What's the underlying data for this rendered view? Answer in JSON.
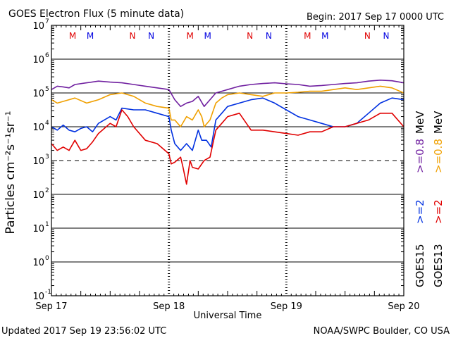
{
  "chart_data": {
    "type": "line",
    "title": "GOES Electron Flux (5 minute data)",
    "begin_label": "Begin: 2017 Sep 17 0000 UTC",
    "xlabel": "Universal Time",
    "ylabel": "Particles cm⁻²s⁻¹sr⁻¹",
    "x_ticks": [
      "Sep 17",
      "Sep 18",
      "Sep 19",
      "Sep 20"
    ],
    "x_range_days": [
      0,
      3
    ],
    "y_scale": "log",
    "ylim_exponents": [
      -1,
      7
    ],
    "y_tick_exponents": [
      7,
      6,
      5,
      4,
      3,
      2,
      1,
      0,
      -1
    ],
    "threshold_exponent": 3,
    "footer_left": "Updated 2017 Sep 19 23:56:02 UTC",
    "footer_right": "NOAA/SWPC Boulder, CO USA",
    "noon_midnight_markers": [
      {
        "label": "M",
        "day": 0.18,
        "color": "#e00000"
      },
      {
        "label": "M",
        "day": 0.33,
        "color": "#0000e0"
      },
      {
        "label": "N",
        "day": 0.69,
        "color": "#e00000"
      },
      {
        "label": "N",
        "day": 0.85,
        "color": "#0000e0"
      },
      {
        "label": "M",
        "day": 1.18,
        "color": "#e00000"
      },
      {
        "label": "M",
        "day": 1.33,
        "color": "#0000e0"
      },
      {
        "label": "N",
        "day": 1.69,
        "color": "#e00000"
      },
      {
        "label": "N",
        "day": 1.85,
        "color": "#0000e0"
      },
      {
        "label": "M",
        "day": 2.18,
        "color": "#e00000"
      },
      {
        "label": "M",
        "day": 2.33,
        "color": "#0000e0"
      },
      {
        "label": "N",
        "day": 2.69,
        "color": "#e00000"
      },
      {
        "label": "N",
        "day": 2.85,
        "color": "#0000e0"
      }
    ],
    "legend": {
      "goes15_label": "GOES15",
      "goes13_label": "GOES13",
      "goes15_ge2": ">=2",
      "goes13_ge2": ">=2",
      "goes15_ge08": ">=0.8",
      "goes13_ge08": ">=0.8",
      "unit": "MeV"
    },
    "series": [
      {
        "name": "GOES15 >=0.8 MeV",
        "color": "#7020a0",
        "x": [
          0,
          0.05,
          0.1,
          0.15,
          0.2,
          0.3,
          0.4,
          0.5,
          0.6,
          0.7,
          0.8,
          0.9,
          1.0,
          1.05,
          1.1,
          1.15,
          1.2,
          1.25,
          1.3,
          1.35,
          1.4,
          1.5,
          1.6,
          1.7,
          1.8,
          1.9,
          2.0,
          2.1,
          2.2,
          2.3,
          2.4,
          2.5,
          2.6,
          2.7,
          2.8,
          2.9,
          3.0
        ],
        "y": [
          5.1,
          5.2,
          5.18,
          5.15,
          5.25,
          5.3,
          5.35,
          5.32,
          5.3,
          5.25,
          5.2,
          5.15,
          5.1,
          4.8,
          4.6,
          4.7,
          4.75,
          4.9,
          4.6,
          4.8,
          5.0,
          5.1,
          5.2,
          5.25,
          5.28,
          5.3,
          5.27,
          5.25,
          5.2,
          5.22,
          5.25,
          5.28,
          5.3,
          5.35,
          5.38,
          5.36,
          5.3
        ]
      },
      {
        "name": "GOES13 >=0.8 MeV",
        "color": "#f0a000",
        "x": [
          0,
          0.05,
          0.1,
          0.2,
          0.3,
          0.4,
          0.5,
          0.6,
          0.7,
          0.8,
          0.9,
          1.0,
          1.02,
          1.05,
          1.1,
          1.15,
          1.2,
          1.25,
          1.28,
          1.3,
          1.35,
          1.4,
          1.45,
          1.5,
          1.6,
          1.7,
          1.8,
          1.9,
          2.0,
          2.1,
          2.2,
          2.3,
          2.4,
          2.5,
          2.6,
          2.7,
          2.8,
          2.9,
          3.0
        ],
        "y": [
          4.8,
          4.7,
          4.75,
          4.85,
          4.7,
          4.8,
          4.95,
          5.0,
          4.9,
          4.7,
          4.6,
          4.55,
          4.2,
          4.2,
          4.0,
          4.3,
          4.2,
          4.5,
          4.3,
          4.0,
          4.2,
          4.7,
          4.85,
          4.95,
          5.0,
          4.95,
          4.9,
          5.0,
          5.0,
          5.02,
          5.05,
          5.05,
          5.1,
          5.15,
          5.1,
          5.15,
          5.2,
          5.15,
          5.0
        ]
      },
      {
        "name": "GOES15 >=2 MeV",
        "color": "#0030e0",
        "x": [
          0,
          0.05,
          0.1,
          0.15,
          0.2,
          0.25,
          0.3,
          0.35,
          0.4,
          0.5,
          0.55,
          0.6,
          0.7,
          0.8,
          0.9,
          1.0,
          1.02,
          1.05,
          1.1,
          1.15,
          1.2,
          1.25,
          1.28,
          1.32,
          1.36,
          1.4,
          1.45,
          1.5,
          1.6,
          1.7,
          1.8,
          1.9,
          2.0,
          2.1,
          2.2,
          2.3,
          2.4,
          2.5,
          2.6,
          2.7,
          2.8,
          2.9,
          3.0
        ],
        "y": [
          4.0,
          3.9,
          4.05,
          3.9,
          3.85,
          3.95,
          4.0,
          3.85,
          4.1,
          4.3,
          4.2,
          4.55,
          4.5,
          4.5,
          4.4,
          4.3,
          3.9,
          3.5,
          3.3,
          3.5,
          3.3,
          3.9,
          3.6,
          3.6,
          3.4,
          4.2,
          4.4,
          4.6,
          4.7,
          4.8,
          4.85,
          4.7,
          4.5,
          4.3,
          4.2,
          4.1,
          4.0,
          4.0,
          4.1,
          4.4,
          4.7,
          4.85,
          4.8
        ]
      },
      {
        "name": "GOES13 >=2 MeV",
        "color": "#e00000",
        "x": [
          0,
          0.05,
          0.1,
          0.15,
          0.2,
          0.25,
          0.3,
          0.35,
          0.4,
          0.5,
          0.55,
          0.6,
          0.65,
          0.7,
          0.8,
          0.9,
          1.0,
          1.02,
          1.05,
          1.1,
          1.12,
          1.15,
          1.18,
          1.2,
          1.25,
          1.3,
          1.35,
          1.4,
          1.45,
          1.5,
          1.6,
          1.7,
          1.8,
          1.9,
          2.0,
          2.1,
          2.2,
          2.3,
          2.4,
          2.5,
          2.6,
          2.7,
          2.8,
          2.9,
          3.0
        ],
        "y": [
          3.5,
          3.3,
          3.4,
          3.3,
          3.6,
          3.3,
          3.35,
          3.55,
          3.8,
          4.1,
          4.0,
          4.5,
          4.3,
          4.0,
          3.6,
          3.5,
          3.2,
          2.9,
          2.95,
          3.1,
          2.8,
          2.3,
          3.0,
          2.8,
          2.75,
          3.0,
          3.1,
          3.9,
          4.1,
          4.3,
          4.4,
          3.9,
          3.9,
          3.85,
          3.8,
          3.75,
          3.85,
          3.85,
          4.0,
          4.0,
          4.1,
          4.2,
          4.4,
          4.4,
          4.0
        ]
      }
    ]
  }
}
